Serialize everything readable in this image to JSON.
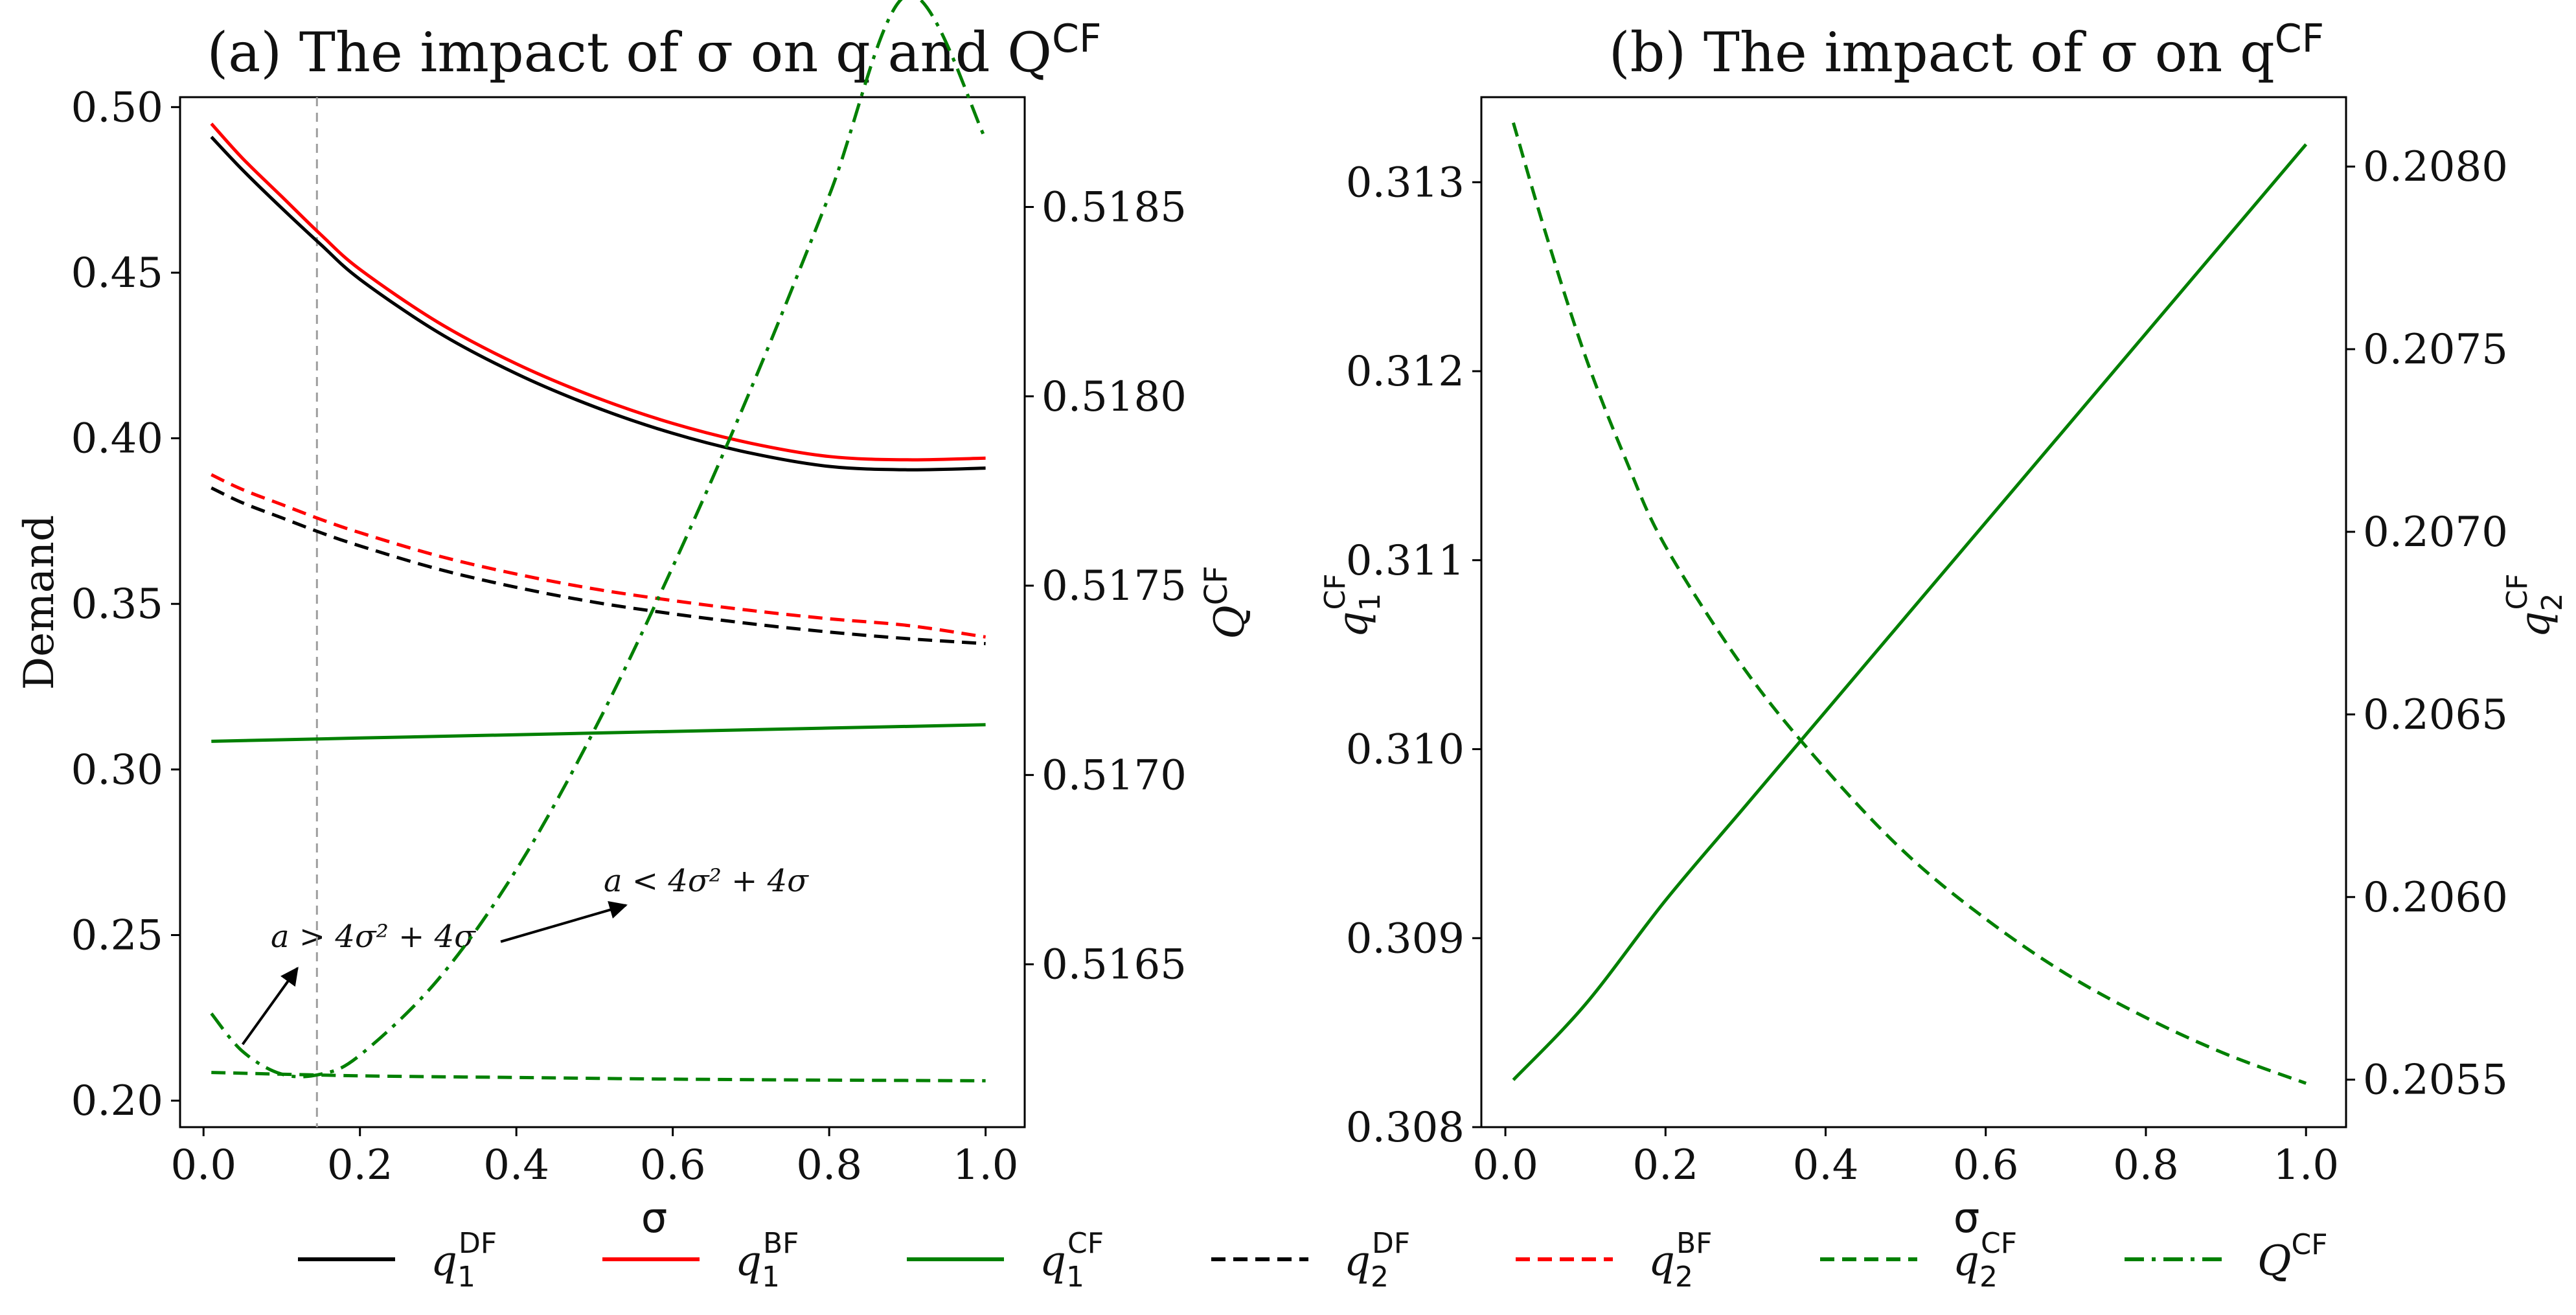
{
  "chart_data": [
    {
      "id": "a",
      "type": "line",
      "title_parts": [
        "(a) The impact of σ on q and Q",
        "CF"
      ],
      "xlabel": "σ",
      "ylabel": "Demand",
      "y2label_parts": [
        "Q",
        "CF"
      ],
      "xlim": [
        -0.03,
        1.05
      ],
      "ylim": [
        0.192,
        0.503
      ],
      "y2lim": [
        0.51607,
        0.51879
      ],
      "xticks": [
        0.0,
        0.2,
        0.4,
        0.6,
        0.8,
        1.0
      ],
      "xtick_labels": [
        "0.0",
        "0.2",
        "0.4",
        "0.6",
        "0.8",
        "1.0"
      ],
      "yticks": [
        0.2,
        0.25,
        0.3,
        0.35,
        0.4,
        0.45,
        0.5
      ],
      "ytick_labels": [
        "0.20",
        "0.25",
        "0.30",
        "0.35",
        "0.40",
        "0.45",
        "0.50"
      ],
      "y2ticks": [
        0.5165,
        0.517,
        0.5175,
        0.518,
        0.5185
      ],
      "y2tick_labels": [
        "0.5165",
        "0.5170",
        "0.5175",
        "0.5180",
        "0.5185"
      ],
      "vline_x": 0.145,
      "series": [
        {
          "key": "q1DF",
          "name": "q1^DF",
          "color": "#000000",
          "dash": "solid",
          "axis": "left",
          "x": [
            0.01,
            0.05,
            0.1,
            0.15,
            0.2,
            0.3,
            0.4,
            0.5,
            0.6,
            0.7,
            0.8,
            0.9,
            1.0
          ],
          "y": [
            0.491,
            0.481,
            0.4695,
            0.4585,
            0.448,
            0.432,
            0.4195,
            0.4095,
            0.4015,
            0.3955,
            0.3915,
            0.3905,
            0.391
          ]
        },
        {
          "key": "q1BF",
          "name": "q1^BF",
          "color": "#ff0000",
          "dash": "solid",
          "axis": "left",
          "x": [
            0.01,
            0.05,
            0.1,
            0.15,
            0.2,
            0.3,
            0.4,
            0.5,
            0.6,
            0.7,
            0.8,
            0.9,
            1.0
          ],
          "y": [
            0.495,
            0.4845,
            0.473,
            0.4615,
            0.451,
            0.435,
            0.4225,
            0.4125,
            0.4045,
            0.3985,
            0.3945,
            0.3935,
            0.394
          ]
        },
        {
          "key": "q1CF",
          "name": "q1^CF",
          "color": "#008000",
          "dash": "solid",
          "axis": "left",
          "x": [
            0.01,
            0.2,
            0.4,
            0.6,
            0.8,
            1.0
          ],
          "y": [
            0.3085,
            0.3095,
            0.3105,
            0.3115,
            0.3125,
            0.3135
          ]
        },
        {
          "key": "q2DF",
          "name": "q2^DF",
          "color": "#000000",
          "dash": "dashed",
          "axis": "left",
          "x": [
            0.01,
            0.05,
            0.1,
            0.15,
            0.2,
            0.3,
            0.4,
            0.5,
            0.6,
            0.7,
            0.8,
            0.9,
            1.0
          ],
          "y": [
            0.385,
            0.3805,
            0.376,
            0.3715,
            0.3675,
            0.3605,
            0.355,
            0.3505,
            0.347,
            0.344,
            0.3415,
            0.3395,
            0.338
          ]
        },
        {
          "key": "q2BF",
          "name": "q2^BF",
          "color": "#ff0000",
          "dash": "dashed",
          "axis": "left",
          "x": [
            0.01,
            0.05,
            0.1,
            0.15,
            0.2,
            0.3,
            0.4,
            0.5,
            0.6,
            0.7,
            0.8,
            0.9,
            1.0
          ],
          "y": [
            0.389,
            0.3845,
            0.38,
            0.3755,
            0.3715,
            0.3645,
            0.359,
            0.3545,
            0.351,
            0.348,
            0.3455,
            0.3435,
            0.34
          ]
        },
        {
          "key": "q2CF",
          "name": "q2^CF",
          "color": "#008000",
          "dash": "dashed",
          "axis": "left",
          "x": [
            0.01,
            0.2,
            0.4,
            0.6,
            0.8,
            1.0
          ],
          "y": [
            0.2085,
            0.2075,
            0.207,
            0.2065,
            0.2062,
            0.206
          ]
        },
        {
          "key": "QCF",
          "name": "Q^CF",
          "color": "#008000",
          "dash": "dashdot",
          "axis": "right",
          "x": [
            0.01,
            0.05,
            0.1,
            0.15,
            0.2,
            0.3,
            0.4,
            0.5,
            0.6,
            0.7,
            0.8,
            0.9,
            1.0
          ],
          "y": [
            0.51637,
            0.51627,
            0.51621,
            0.51621,
            0.51626,
            0.51646,
            0.51675,
            0.51712,
            0.51755,
            0.51802,
            0.51853,
            0.51906,
            0.51868
          ]
        }
      ],
      "annotations": [
        {
          "text": "a > 4σ² + 4σ",
          "arrow_from": [
            0.05,
            0.217
          ],
          "arrow_to": [
            0.12,
            0.24
          ],
          "text_at": [
            0.08,
            0.246
          ]
        },
        {
          "text": "a < 4σ² + 4σ",
          "arrow_from": [
            0.38,
            0.248
          ],
          "arrow_to": [
            0.54,
            0.259
          ],
          "text_at": [
            0.5,
            0.262
          ]
        }
      ]
    },
    {
      "id": "b",
      "type": "line",
      "title_parts": [
        "(b) The impact of σ on q",
        "CF"
      ],
      "xlabel": "σ",
      "ylabel_parts": [
        "q",
        "1",
        "CF"
      ],
      "y2label_parts": [
        "q",
        "2",
        "CF"
      ],
      "xlim": [
        -0.03,
        1.05
      ],
      "ylim": [
        0.308,
        0.31345
      ],
      "y2lim": [
        0.20537,
        0.20819
      ],
      "xticks": [
        0.0,
        0.2,
        0.4,
        0.6,
        0.8,
        1.0
      ],
      "xtick_labels": [
        "0.0",
        "0.2",
        "0.4",
        "0.6",
        "0.8",
        "1.0"
      ],
      "yticks": [
        0.308,
        0.309,
        0.31,
        0.311,
        0.312,
        0.313
      ],
      "ytick_labels": [
        "0.308",
        "0.309",
        "0.310",
        "0.311",
        "0.312",
        "0.313"
      ],
      "y2ticks": [
        0.2055,
        0.206,
        0.2065,
        0.207,
        0.2075,
        0.208
      ],
      "y2tick_labels": [
        "0.2055",
        "0.2060",
        "0.2065",
        "0.2070",
        "0.2075",
        "0.2080"
      ],
      "series": [
        {
          "key": "q1CF",
          "name": "q1^CF",
          "color": "#008000",
          "dash": "solid",
          "axis": "left",
          "x": [
            0.01,
            0.1,
            0.2,
            0.3,
            0.4,
            0.5,
            0.6,
            0.7,
            0.8,
            0.9,
            1.0
          ],
          "y": [
            0.30825,
            0.30865,
            0.3092,
            0.3097,
            0.3102,
            0.3107,
            0.3112,
            0.3117,
            0.3122,
            0.3127,
            0.3132
          ]
        },
        {
          "key": "q2CF",
          "name": "q2^CF",
          "color": "#008000",
          "dash": "dashed",
          "axis": "right",
          "x": [
            0.01,
            0.05,
            0.1,
            0.15,
            0.2,
            0.3,
            0.4,
            0.5,
            0.6,
            0.7,
            0.8,
            0.9,
            1.0
          ],
          "y": [
            0.20812,
            0.20782,
            0.20748,
            0.2072,
            0.20696,
            0.20662,
            0.20635,
            0.20612,
            0.20594,
            0.20579,
            0.20567,
            0.20557,
            0.20549
          ]
        }
      ]
    }
  ],
  "legend": {
    "placement": "bottom",
    "items": [
      {
        "key": "q1DF",
        "color": "#000000",
        "dash": "solid",
        "base": "q",
        "sub": "1",
        "sup": "DF"
      },
      {
        "key": "q1BF",
        "color": "#ff0000",
        "dash": "solid",
        "base": "q",
        "sub": "1",
        "sup": "BF"
      },
      {
        "key": "q1CF",
        "color": "#008000",
        "dash": "solid",
        "base": "q",
        "sub": "1",
        "sup": "CF"
      },
      {
        "key": "q2DF",
        "color": "#000000",
        "dash": "dashed",
        "base": "q",
        "sub": "2",
        "sup": "DF"
      },
      {
        "key": "q2BF",
        "color": "#ff0000",
        "dash": "dashed",
        "base": "q",
        "sub": "2",
        "sup": "BF"
      },
      {
        "key": "q2CF",
        "color": "#008000",
        "dash": "dashed",
        "base": "q",
        "sub": "2",
        "sup": "CF"
      },
      {
        "key": "QCF",
        "color": "#008000",
        "dash": "dashdot",
        "base": "Q",
        "sub": "",
        "sup": "CF"
      }
    ]
  },
  "colors": {
    "axis": "#000000",
    "vline": "#9e9e9e"
  }
}
